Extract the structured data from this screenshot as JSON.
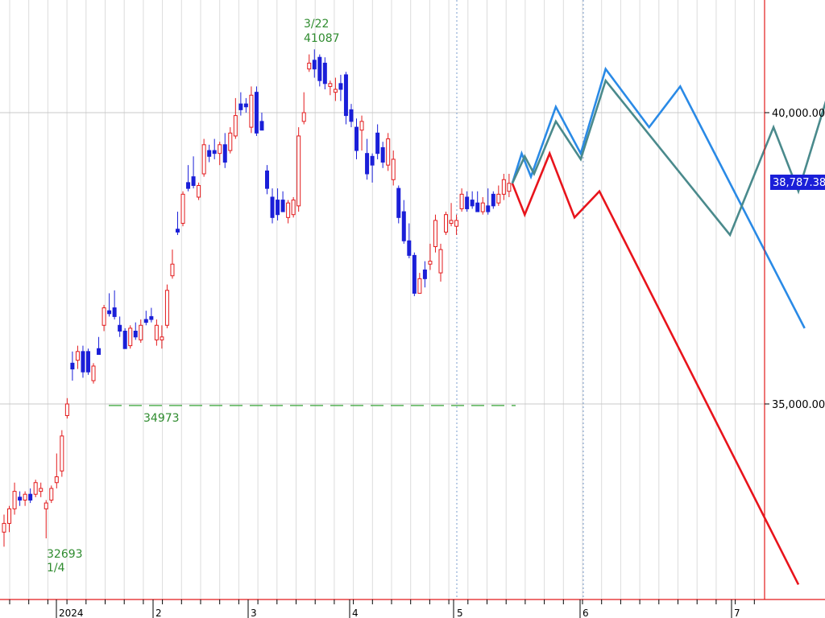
{
  "chart_data": {
    "type": "candlestick",
    "y_axis": {
      "ticks": [
        {
          "value": 40000,
          "label": "40,000.00"
        },
        {
          "value": 35000,
          "label": "35,000.00"
        }
      ],
      "current_price_label": "38,787.38",
      "current_price": 38787.38
    },
    "x_axis": {
      "month_labels": [
        "2024",
        "2",
        "3",
        "4",
        "5",
        "6",
        "7"
      ]
    },
    "annotations": [
      {
        "id": "high",
        "date_label": "3/22",
        "value_label": "41087",
        "value": 41087
      },
      {
        "id": "low",
        "date_label": "1/4",
        "value_label": "32693",
        "value": 32693
      },
      {
        "id": "support",
        "value_label": "34973",
        "value": 34973
      }
    ],
    "candles": [
      {
        "o": 32800,
        "h": 33100,
        "l": 32550,
        "c": 32950,
        "up": true
      },
      {
        "o": 32950,
        "h": 33250,
        "l": 32800,
        "c": 33200,
        "up": true
      },
      {
        "o": 33200,
        "h": 33650,
        "l": 33100,
        "c": 33500,
        "up": true
      },
      {
        "o": 33400,
        "h": 33500,
        "l": 33250,
        "c": 33350,
        "up": false
      },
      {
        "o": 33350,
        "h": 33500,
        "l": 33250,
        "c": 33450,
        "up": true
      },
      {
        "o": 33450,
        "h": 33550,
        "l": 33300,
        "c": 33350,
        "up": false
      },
      {
        "o": 33450,
        "h": 33700,
        "l": 33400,
        "c": 33650,
        "up": true
      },
      {
        "o": 33550,
        "h": 33650,
        "l": 33400,
        "c": 33500,
        "up": true
      },
      {
        "o": 33300,
        "h": 33350,
        "l": 32693,
        "c": 33200,
        "up": true
      },
      {
        "o": 33350,
        "h": 33600,
        "l": 33300,
        "c": 33550,
        "up": true
      },
      {
        "o": 33650,
        "h": 34150,
        "l": 33550,
        "c": 33750,
        "up": true
      },
      {
        "o": 33850,
        "h": 34550,
        "l": 33750,
        "c": 34450,
        "up": true
      },
      {
        "o": 34800,
        "h": 35100,
        "l": 34750,
        "c": 35000,
        "up": true
      },
      {
        "o": 35600,
        "h": 35900,
        "l": 35400,
        "c": 35700,
        "up": false
      },
      {
        "o": 35750,
        "h": 36000,
        "l": 35600,
        "c": 35900,
        "up": true
      },
      {
        "o": 35900,
        "h": 36000,
        "l": 35450,
        "c": 35550,
        "up": false
      },
      {
        "o": 35900,
        "h": 35950,
        "l": 35500,
        "c": 35550,
        "up": false
      },
      {
        "o": 35400,
        "h": 35700,
        "l": 35350,
        "c": 35650,
        "up": true
      },
      {
        "o": 35950,
        "h": 36150,
        "l": 35850,
        "c": 35850,
        "up": false
      },
      {
        "o": 36350,
        "h": 36700,
        "l": 36250,
        "c": 36650,
        "up": true
      },
      {
        "o": 36600,
        "h": 36900,
        "l": 36500,
        "c": 36550,
        "up": false
      },
      {
        "o": 36650,
        "h": 36950,
        "l": 36450,
        "c": 36500,
        "up": false
      },
      {
        "o": 36350,
        "h": 36500,
        "l": 36150,
        "c": 36250,
        "up": false
      },
      {
        "o": 36250,
        "h": 36300,
        "l": 35950,
        "c": 35950,
        "up": false
      },
      {
        "o": 36000,
        "h": 36350,
        "l": 35950,
        "c": 36300,
        "up": true
      },
      {
        "o": 36250,
        "h": 36400,
        "l": 36100,
        "c": 36150,
        "up": false
      },
      {
        "o": 36100,
        "h": 36450,
        "l": 36050,
        "c": 36350,
        "up": true
      },
      {
        "o": 36450,
        "h": 36600,
        "l": 36350,
        "c": 36400,
        "up": false
      },
      {
        "o": 36500,
        "h": 36650,
        "l": 36400,
        "c": 36450,
        "up": false
      },
      {
        "o": 36100,
        "h": 36450,
        "l": 36000,
        "c": 36350,
        "up": true
      },
      {
        "o": 36150,
        "h": 36350,
        "l": 35950,
        "c": 36100,
        "up": true
      },
      {
        "o": 36350,
        "h": 37050,
        "l": 36300,
        "c": 36950,
        "up": true
      },
      {
        "o": 37200,
        "h": 37650,
        "l": 37150,
        "c": 37400,
        "up": true
      },
      {
        "o": 37950,
        "h": 38300,
        "l": 37900,
        "c": 38000,
        "up": false
      },
      {
        "o": 38100,
        "h": 38650,
        "l": 38050,
        "c": 38600,
        "up": true
      },
      {
        "o": 38800,
        "h": 39100,
        "l": 38650,
        "c": 38700,
        "up": false
      },
      {
        "o": 38900,
        "h": 39250,
        "l": 38700,
        "c": 38750,
        "up": false
      },
      {
        "o": 38550,
        "h": 38800,
        "l": 38500,
        "c": 38750,
        "up": true
      },
      {
        "o": 38950,
        "h": 39550,
        "l": 38900,
        "c": 39450,
        "up": true
      },
      {
        "o": 39350,
        "h": 39450,
        "l": 39150,
        "c": 39250,
        "up": false
      },
      {
        "o": 39300,
        "h": 39550,
        "l": 39200,
        "c": 39350,
        "up": false
      },
      {
        "o": 39300,
        "h": 39500,
        "l": 39100,
        "c": 39450,
        "up": true
      },
      {
        "o": 39450,
        "h": 39650,
        "l": 39050,
        "c": 39150,
        "up": false
      },
      {
        "o": 39350,
        "h": 39750,
        "l": 39300,
        "c": 39650,
        "up": true
      },
      {
        "o": 39600,
        "h": 40250,
        "l": 39550,
        "c": 39950,
        "up": true
      },
      {
        "o": 40050,
        "h": 40350,
        "l": 39950,
        "c": 40150,
        "up": false
      },
      {
        "o": 40150,
        "h": 40250,
        "l": 40000,
        "c": 40100,
        "up": false
      },
      {
        "o": 39750,
        "h": 40450,
        "l": 39650,
        "c": 40300,
        "up": true
      },
      {
        "o": 40350,
        "h": 40450,
        "l": 39600,
        "c": 39650,
        "up": false
      },
      {
        "o": 39850,
        "h": 40000,
        "l": 39700,
        "c": 39700,
        "up": false
      },
      {
        "o": 39000,
        "h": 39100,
        "l": 38600,
        "c": 38700,
        "up": false
      },
      {
        "o": 38550,
        "h": 38700,
        "l": 38100,
        "c": 38200,
        "up": false
      },
      {
        "o": 38500,
        "h": 38700,
        "l": 38150,
        "c": 38250,
        "up": false
      },
      {
        "o": 38500,
        "h": 38650,
        "l": 38300,
        "c": 38300,
        "up": false
      },
      {
        "o": 38200,
        "h": 38500,
        "l": 38100,
        "c": 38450,
        "up": true
      },
      {
        "o": 38250,
        "h": 38550,
        "l": 38200,
        "c": 38500,
        "up": true
      },
      {
        "o": 38400,
        "h": 39750,
        "l": 38300,
        "c": 39600,
        "up": true
      },
      {
        "o": 39850,
        "h": 40350,
        "l": 39800,
        "c": 40000,
        "up": true
      },
      {
        "o": 40750,
        "h": 41000,
        "l": 40700,
        "c": 40850,
        "up": true
      },
      {
        "o": 40750,
        "h": 41087,
        "l": 40600,
        "c": 40900,
        "up": false
      },
      {
        "o": 40950,
        "h": 41000,
        "l": 40450,
        "c": 40550,
        "up": false
      },
      {
        "o": 40850,
        "h": 40950,
        "l": 40400,
        "c": 40500,
        "up": false
      },
      {
        "o": 40450,
        "h": 40550,
        "l": 40300,
        "c": 40500,
        "up": true
      },
      {
        "o": 40400,
        "h": 40600,
        "l": 40200,
        "c": 40350,
        "up": true
      },
      {
        "o": 40500,
        "h": 40650,
        "l": 40200,
        "c": 40400,
        "up": false
      },
      {
        "o": 40650,
        "h": 40700,
        "l": 39800,
        "c": 39950,
        "up": false
      },
      {
        "o": 39850,
        "h": 40150,
        "l": 39750,
        "c": 40050,
        "up": false
      },
      {
        "o": 39750,
        "h": 39900,
        "l": 39200,
        "c": 39350,
        "up": false
      },
      {
        "o": 39700,
        "h": 39950,
        "l": 39350,
        "c": 39850,
        "up": true
      },
      {
        "o": 39300,
        "h": 39550,
        "l": 38850,
        "c": 38950,
        "up": false
      },
      {
        "o": 39100,
        "h": 39300,
        "l": 38800,
        "c": 39250,
        "up": false
      },
      {
        "o": 39300,
        "h": 39800,
        "l": 39200,
        "c": 39650,
        "up": false
      },
      {
        "o": 39150,
        "h": 39500,
        "l": 39050,
        "c": 39400,
        "up": false
      },
      {
        "o": 39100,
        "h": 39650,
        "l": 39000,
        "c": 39550,
        "up": true
      },
      {
        "o": 39200,
        "h": 39350,
        "l": 38750,
        "c": 38850,
        "up": true
      },
      {
        "o": 38700,
        "h": 38750,
        "l": 38100,
        "c": 38200,
        "up": false
      },
      {
        "o": 38300,
        "h": 38500,
        "l": 37750,
        "c": 37800,
        "up": false
      },
      {
        "o": 37800,
        "h": 38100,
        "l": 37500,
        "c": 37550,
        "up": false
      },
      {
        "o": 37550,
        "h": 37600,
        "l": 36850,
        "c": 36900,
        "up": false
      },
      {
        "o": 36900,
        "h": 37250,
        "l": 36900,
        "c": 37150,
        "up": true
      },
      {
        "o": 37300,
        "h": 37450,
        "l": 37000,
        "c": 37150,
        "up": false
      },
      {
        "o": 37400,
        "h": 37750,
        "l": 37300,
        "c": 37450,
        "up": true
      },
      {
        "o": 37700,
        "h": 38250,
        "l": 37600,
        "c": 38150,
        "up": true
      },
      {
        "o": 37250,
        "h": 37750,
        "l": 37100,
        "c": 37650,
        "up": true
      },
      {
        "o": 37950,
        "h": 38300,
        "l": 37900,
        "c": 38250,
        "up": true
      },
      {
        "o": 38100,
        "h": 38450,
        "l": 38050,
        "c": 38150,
        "up": true
      },
      {
        "o": 38050,
        "h": 38250,
        "l": 37900,
        "c": 38150,
        "up": true
      },
      {
        "o": 38350,
        "h": 38700,
        "l": 38300,
        "c": 38600,
        "up": true
      },
      {
        "o": 38550,
        "h": 38650,
        "l": 38300,
        "c": 38350,
        "up": false
      },
      {
        "o": 38500,
        "h": 38650,
        "l": 38350,
        "c": 38400,
        "up": false
      },
      {
        "o": 38450,
        "h": 38650,
        "l": 38300,
        "c": 38300,
        "up": false
      },
      {
        "o": 38300,
        "h": 38550,
        "l": 38250,
        "c": 38450,
        "up": true
      },
      {
        "o": 38400,
        "h": 38700,
        "l": 38250,
        "c": 38300,
        "up": false
      },
      {
        "o": 38400,
        "h": 38650,
        "l": 38350,
        "c": 38600,
        "up": false
      },
      {
        "o": 38450,
        "h": 38750,
        "l": 38400,
        "c": 38600,
        "up": true
      },
      {
        "o": 38600,
        "h": 38950,
        "l": 38500,
        "c": 38850,
        "up": true
      },
      {
        "o": 38650,
        "h": 38950,
        "l": 38550,
        "c": 38787,
        "up": true
      }
    ],
    "projection_series": [
      {
        "color": "#e8141c",
        "points": [
          [
            0,
            38787
          ],
          [
            2,
            38250
          ],
          [
            6,
            39300
          ],
          [
            10,
            38200
          ],
          [
            14,
            38650
          ],
          [
            46,
            31900
          ]
        ]
      },
      {
        "color": "#2a8ae6",
        "points": [
          [
            0,
            38787
          ],
          [
            1.5,
            39300
          ],
          [
            3,
            38900
          ],
          [
            7,
            40100
          ],
          [
            11,
            39300
          ],
          [
            15,
            40750
          ],
          [
            22,
            39750
          ],
          [
            27,
            40450
          ],
          [
            47,
            36300
          ]
        ]
      },
      {
        "color": "#4a8a8c",
        "points": [
          [
            0,
            38787
          ],
          [
            2,
            39250
          ],
          [
            3.5,
            38950
          ],
          [
            7,
            39850
          ],
          [
            11,
            39200
          ],
          [
            15,
            40550
          ],
          [
            35,
            37900
          ],
          [
            42,
            39750
          ],
          [
            46,
            38650
          ],
          [
            51,
            40400
          ]
        ]
      }
    ],
    "colors": {
      "up_candle": "#e31a1c",
      "down_candle": "#1a1fd8",
      "annotation_text": "#2e8b2e",
      "support_line": "#44aa44",
      "grid": "#dcdcdc",
      "axis_red": "#e31a1c"
    }
  }
}
